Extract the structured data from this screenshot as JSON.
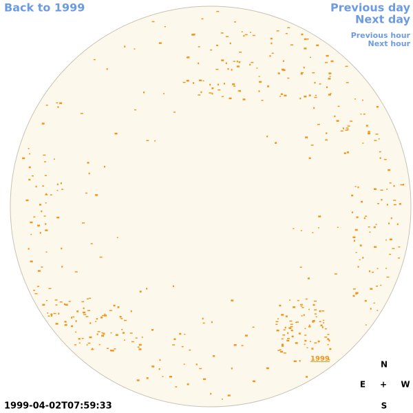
{
  "navigation": {
    "back_to_year": "Back to 1999",
    "previous_day": "Previous day",
    "next_day": "Next day",
    "previous_hour": "Previous hour",
    "next_hour": "Next hour"
  },
  "disk_label": "1999",
  "timestamp": "1999-04-02T07:59:33",
  "compass": {
    "north": "N",
    "east": "E",
    "center": "+",
    "west": "W",
    "south": "S"
  }
}
